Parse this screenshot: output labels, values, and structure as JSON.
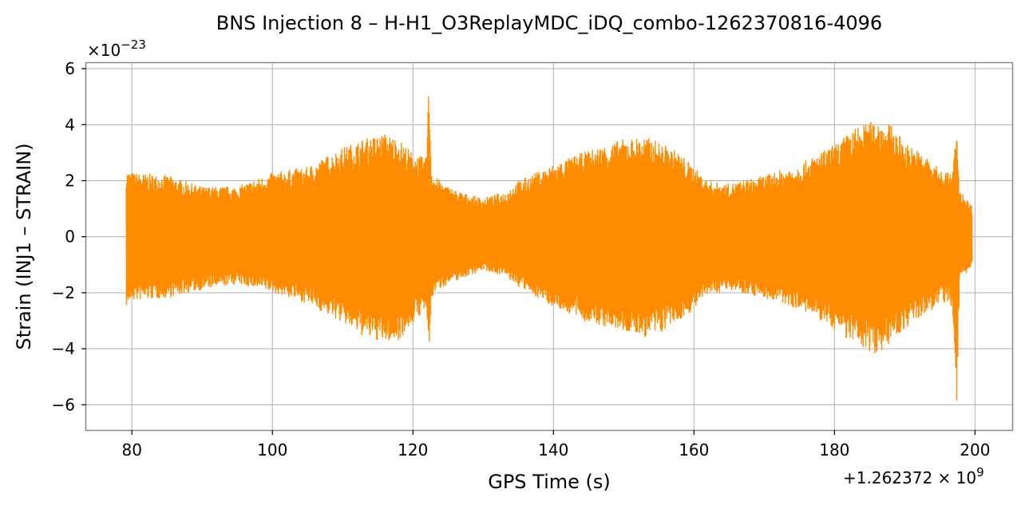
{
  "chart_data": {
    "type": "line",
    "title": "BNS Injection 8 – H-H1_O3ReplayMDC_iDQ_combo-1262370816-4096",
    "xlabel": "GPS Time (s)",
    "ylabel": "Strain (INJ1 – STRAIN)",
    "x_offset_text": "+1.262372 × 10^9",
    "y_scale_text": "×10^−23",
    "xlim": [
      73.5,
      205.3
    ],
    "ylim": [
      -6.9,
      6.2
    ],
    "xticks": [
      80,
      100,
      120,
      140,
      160,
      180,
      200
    ],
    "xtick_labels": [
      "80",
      "100",
      "120",
      "140",
      "160",
      "180",
      "200"
    ],
    "yticks": [
      -6,
      -4,
      -2,
      0,
      2,
      4,
      6
    ],
    "ytick_labels": [
      "−6",
      "−4",
      "−2",
      "0",
      "2",
      "4",
      "6"
    ],
    "grid": true,
    "line_color": "#ff8c00",
    "series": [
      {
        "x_start": 79.2,
        "x_end": 199.6,
        "envelope": {
          "x": [
            79.2,
            80,
            85,
            90,
            95,
            100,
            105,
            110,
            113,
            116,
            118,
            120,
            121.8,
            122.3,
            122.6,
            123,
            125,
            128,
            130,
            133,
            135,
            140,
            145,
            150,
            153,
            155,
            158,
            160,
            162,
            165,
            170,
            175,
            180,
            183,
            186,
            188,
            190,
            193,
            195,
            196.8,
            197.4,
            197.8,
            198.5,
            199.6
          ],
          "upper": [
            2.4,
            2.3,
            2.2,
            1.8,
            1.8,
            2.3,
            2.5,
            3.2,
            3.5,
            3.7,
            3.5,
            3.0,
            2.8,
            5.6,
            2.6,
            2.2,
            1.8,
            1.5,
            1.4,
            1.6,
            2.0,
            2.6,
            3.1,
            3.5,
            3.6,
            3.4,
            3.0,
            2.5,
            2.0,
            1.9,
            2.2,
            2.6,
            3.3,
            3.9,
            4.2,
            4.0,
            3.4,
            2.9,
            2.4,
            2.3,
            3.9,
            1.6,
            1.5,
            1.1
          ],
          "lower": [
            -2.5,
            -2.3,
            -2.2,
            -1.9,
            -1.7,
            -2.0,
            -2.4,
            -3.1,
            -3.6,
            -3.8,
            -3.7,
            -3.1,
            -2.6,
            -4.2,
            -2.4,
            -2.0,
            -1.7,
            -1.4,
            -1.2,
            -1.4,
            -1.8,
            -2.5,
            -3.1,
            -3.4,
            -3.6,
            -3.5,
            -3.0,
            -2.6,
            -2.1,
            -1.9,
            -2.2,
            -2.6,
            -3.3,
            -3.9,
            -4.2,
            -3.8,
            -3.3,
            -2.8,
            -2.4,
            -2.5,
            -6.3,
            -1.5,
            -1.4,
            -1.1
          ]
        }
      }
    ]
  }
}
